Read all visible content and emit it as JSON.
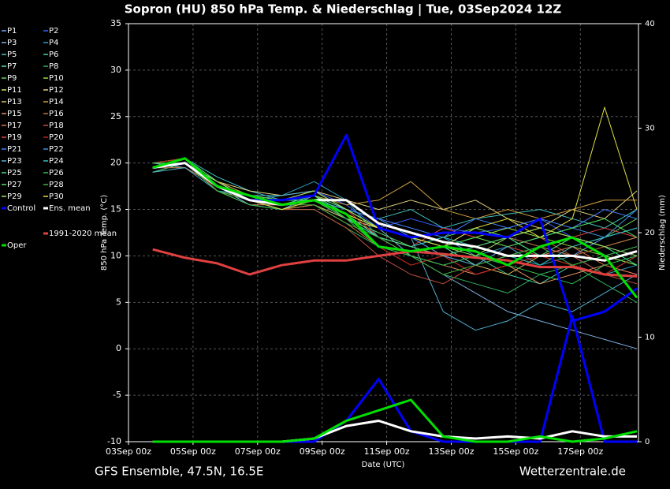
{
  "chart_data": {
    "type": "line",
    "title": "Sopron  (HU)  850 hPa Temp. & Niederschlag | Tue, 03Sep2024 12Z",
    "source_left": "GFS Ensemble, 47.5N, 16.5E",
    "source_right": "Wetterzentrale.de",
    "x_label": "Date (UTC)",
    "y_label": "850 hPa Temp. (°C)",
    "y2_label": "Niederschlag (mm)",
    "xlim": [
      0,
      15.8
    ],
    "xticks": [
      {
        "value": 0,
        "label": "03Sep 00z"
      },
      {
        "value": 2,
        "label": "05Sep 00z"
      },
      {
        "value": 4,
        "label": "07Sep 00z"
      },
      {
        "value": 6,
        "label": "09Sep 00z"
      },
      {
        "value": 8,
        "label": "11Sep 00z"
      },
      {
        "value": 10,
        "label": "13Sep 00z"
      },
      {
        "value": 12,
        "label": "15Sep 00z"
      },
      {
        "value": 14,
        "label": "17Sep 00z"
      }
    ],
    "ylim": [
      -10,
      35
    ],
    "yticks": [
      -10,
      -5,
      0,
      5,
      10,
      15,
      20,
      25,
      30,
      35
    ],
    "y2lim": [
      0,
      40
    ],
    "y2ticks": [
      0,
      10,
      20,
      30,
      40
    ],
    "grid": true,
    "x": [
      0.75,
      1.75,
      2.75,
      3.75,
      4.75,
      5.75,
      6.75,
      7.75,
      8.75,
      9.75,
      10.75,
      11.75,
      12.75,
      13.75,
      14.75,
      15.75
    ],
    "series": [
      {
        "name": "P1",
        "color": "#6aa0ff",
        "values": [
          20,
          20.5,
          17,
          16,
          15,
          16.5,
          15,
          14,
          12,
          11,
          13,
          12,
          11,
          10,
          12,
          13
        ]
      },
      {
        "name": "P2",
        "color": "#3a5fff",
        "values": [
          19.5,
          20,
          18,
          16.5,
          16,
          17,
          15.5,
          13,
          14,
          13,
          12.5,
          13,
          14,
          12,
          11,
          10
        ]
      },
      {
        "name": "P3",
        "color": "#7fb0e0",
        "values": [
          20,
          19.5,
          17.5,
          15.5,
          15,
          15.5,
          14,
          13,
          10,
          8,
          6,
          4,
          3,
          2,
          1,
          0
        ]
      },
      {
        "name": "P4",
        "color": "#30a0c0",
        "values": [
          19,
          20,
          17,
          16,
          16.5,
          18,
          16,
          12,
          11,
          12,
          10,
          11,
          9,
          10,
          8,
          9
        ]
      },
      {
        "name": "P5",
        "color": "#40c0c0",
        "values": [
          19.5,
          20.5,
          18.5,
          17,
          16,
          16,
          15,
          14,
          15,
          13,
          14,
          14.5,
          15,
          14,
          13,
          15
        ]
      },
      {
        "name": "P6",
        "color": "#40d0a0",
        "values": [
          20,
          20,
          17,
          16,
          15.5,
          16,
          14,
          12,
          10,
          9,
          10,
          8,
          7,
          9,
          10,
          11
        ]
      },
      {
        "name": "P7",
        "color": "#60e0b0",
        "values": [
          19.5,
          19.5,
          17.5,
          16,
          16,
          17,
          15,
          13,
          12,
          11,
          9,
          10,
          11,
          12,
          10,
          9
        ]
      },
      {
        "name": "P8",
        "color": "#30b060",
        "values": [
          20,
          20.5,
          17,
          15.5,
          15,
          15,
          13,
          11,
          10,
          8,
          7,
          6,
          8,
          9,
          7,
          5
        ]
      },
      {
        "name": "P9",
        "color": "#60d060",
        "values": [
          19,
          20,
          18,
          16.5,
          16,
          16.5,
          14,
          12.5,
          11,
          12,
          13,
          12,
          10,
          11,
          12,
          14
        ]
      },
      {
        "name": "P10",
        "color": "#90e040",
        "values": [
          20,
          20.5,
          17.5,
          16,
          15.5,
          16,
          14.5,
          13,
          12,
          11,
          12,
          13,
          12,
          11,
          10,
          9
        ]
      },
      {
        "name": "P11",
        "color": "#d0e060",
        "values": [
          19.5,
          20,
          17,
          16,
          16,
          16,
          14,
          12,
          11,
          10,
          11,
          12,
          13,
          12,
          11,
          12
        ]
      },
      {
        "name": "P12",
        "color": "#e0d080",
        "values": [
          19.5,
          20,
          18,
          17,
          16.5,
          17,
          16,
          15,
          16,
          15,
          16,
          14,
          13,
          15,
          14,
          17
        ]
      },
      {
        "name": "P13",
        "color": "#e0c060",
        "values": [
          20,
          20,
          17.5,
          16,
          15,
          15.5,
          14,
          13,
          12,
          10,
          9,
          8,
          10,
          9,
          8,
          10
        ]
      },
      {
        "name": "P14",
        "color": "#d0a040",
        "values": [
          19.5,
          20.5,
          18,
          16.5,
          16,
          16.5,
          15.5,
          16,
          18,
          15,
          14,
          15,
          14,
          15,
          16,
          16
        ]
      },
      {
        "name": "P15",
        "color": "#e09060",
        "values": [
          20,
          20,
          17,
          15.5,
          15.5,
          16,
          14,
          12,
          10,
          9,
          8,
          9,
          7,
          8,
          9,
          8
        ]
      },
      {
        "name": "P16",
        "color": "#c07040",
        "values": [
          19.5,
          19.5,
          17.5,
          16,
          15,
          15.5,
          13.5,
          11,
          9,
          10,
          11,
          12,
          11,
          10,
          11,
          12
        ]
      },
      {
        "name": "P17",
        "color": "#e07050",
        "values": [
          20,
          20,
          17,
          16,
          16,
          16.5,
          14.5,
          12,
          11,
          10,
          8,
          9,
          10,
          11,
          9,
          8
        ]
      },
      {
        "name": "P18",
        "color": "#c05040",
        "values": [
          19.5,
          20,
          18,
          16,
          15,
          15,
          13,
          10,
          8,
          7,
          9,
          11,
          12,
          10,
          8,
          7
        ]
      },
      {
        "name": "P19",
        "color": "#e04040",
        "values": [
          19.5,
          20,
          17.5,
          16.5,
          16,
          17,
          15,
          12,
          11,
          13,
          12,
          11,
          10,
          12,
          13,
          12
        ]
      },
      {
        "name": "P20",
        "color": "#c02020",
        "values": [
          20,
          20.5,
          17,
          16,
          15.5,
          16,
          14,
          11,
          9,
          10,
          8,
          9,
          10,
          9,
          8,
          10
        ]
      },
      {
        "name": "P21",
        "color": "#4080ff",
        "values": [
          19.5,
          20,
          18,
          16,
          16,
          16.5,
          15,
          14,
          13,
          12,
          14,
          13,
          14,
          13,
          15,
          14
        ]
      },
      {
        "name": "P22",
        "color": "#4090e0",
        "values": [
          20,
          20,
          17.5,
          16,
          15,
          16,
          15,
          14,
          12,
          10,
          9,
          11,
          12,
          13,
          12,
          15
        ]
      },
      {
        "name": "P23",
        "color": "#50b0d0",
        "values": [
          19,
          19.5,
          17,
          16.5,
          16.5,
          17,
          15,
          13,
          12,
          4,
          2,
          3,
          5,
          4,
          6,
          8
        ]
      },
      {
        "name": "P24",
        "color": "#30c0c0",
        "values": [
          20,
          20,
          17.5,
          16,
          16,
          16,
          14,
          12,
          11,
          12,
          11,
          10,
          9,
          11,
          12,
          13
        ]
      },
      {
        "name": "P25",
        "color": "#40e080",
        "values": [
          19.5,
          20.5,
          18,
          16,
          15.5,
          16.5,
          14.5,
          12,
          11,
          10,
          11,
          12,
          10,
          12,
          11,
          9
        ]
      },
      {
        "name": "P26",
        "color": "#30c050",
        "values": [
          20,
          20,
          17,
          15.5,
          15,
          16,
          14,
          11,
          10,
          9,
          10,
          9,
          8,
          7,
          9,
          10
        ]
      },
      {
        "name": "P27",
        "color": "#50e060",
        "values": [
          19.5,
          20,
          17.5,
          16.5,
          16,
          16.5,
          15,
          13,
          12,
          11,
          12,
          11,
          12,
          13,
          14,
          12
        ]
      },
      {
        "name": "P28",
        "color": "#40b040",
        "values": [
          20,
          20,
          17,
          16,
          15.5,
          15.5,
          13.5,
          12,
          10,
          8,
          9,
          10,
          11,
          9,
          10,
          11
        ]
      },
      {
        "name": "P29",
        "color": "#a0e060",
        "values": [
          19.5,
          20,
          18,
          16,
          16,
          17,
          15,
          13,
          12,
          11,
          10,
          12,
          13,
          12,
          11,
          10
        ]
      },
      {
        "name": "P30",
        "color": "#e0e040",
        "values": [
          19.5,
          20,
          17.5,
          16,
          15,
          16,
          14.5,
          13,
          12,
          11,
          13,
          14,
          12,
          14,
          26,
          15
        ]
      },
      {
        "name": "Control",
        "color": "#0000ff",
        "width": 3,
        "values": [
          19.5,
          20,
          17.5,
          16,
          16,
          16.5,
          23,
          13,
          12,
          12.5,
          12.5,
          12,
          14,
          3,
          4,
          6.5
        ],
        "precip": [
          0,
          0,
          0,
          0,
          0,
          0,
          2,
          6,
          1,
          0,
          0,
          0,
          0,
          12,
          0,
          0
        ]
      },
      {
        "name": "Ens. mean",
        "color": "#ffffff",
        "width": 3,
        "values": [
          19.5,
          20,
          17.5,
          16,
          15.5,
          16,
          16,
          13.5,
          12.5,
          11.5,
          11,
          10,
          10,
          10,
          9.5,
          10.5
        ],
        "precip": [
          0,
          0,
          0,
          0,
          0,
          0.3,
          1.5,
          2,
          1,
          0.5,
          0.3,
          0.5,
          0.3,
          1,
          0.5,
          0.5
        ]
      },
      {
        "name": "1991-2020 mean",
        "color": "#e04040",
        "width": 3,
        "values": [
          10.7,
          9.8,
          9.2,
          8,
          9,
          9.5,
          9.5,
          10,
          10.5,
          10.2,
          9.8,
          9.5,
          8.8,
          8.8,
          8,
          7.8
        ]
      },
      {
        "name": "Oper",
        "color": "#00e000",
        "width": 3,
        "values": [
          19.5,
          20.5,
          17.5,
          16.5,
          15.5,
          16,
          14.5,
          11,
          10.5,
          11,
          10.5,
          9,
          11,
          12,
          10,
          5.5
        ],
        "precip": [
          0,
          0,
          0,
          0,
          0,
          0.3,
          2,
          3,
          4,
          0.5,
          0,
          0,
          0.5,
          0,
          0.3,
          1
        ]
      }
    ]
  }
}
